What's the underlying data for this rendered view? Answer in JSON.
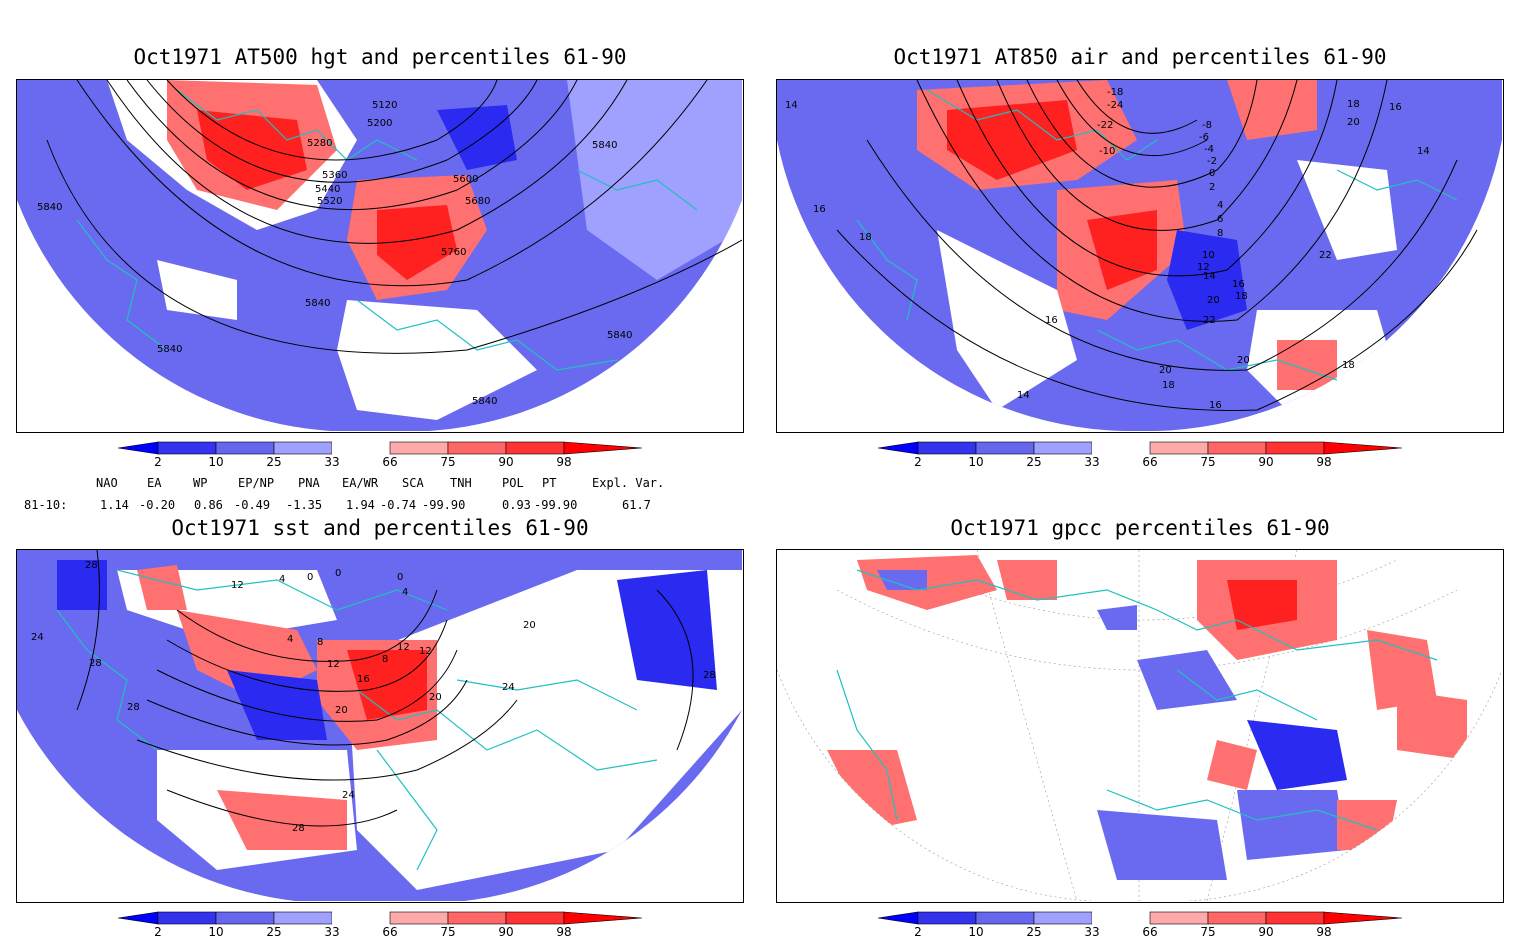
{
  "panels": [
    {
      "title": "Oct1971 AT500 hgt and percentiles 61-90"
    },
    {
      "title": "Oct1971 AT850 air and percentiles 61-90"
    },
    {
      "title": "Oct1971 sst and percentiles 61-90"
    },
    {
      "title": "Oct1971 gpcc percentiles 61-90"
    }
  ],
  "colorbar": {
    "labels": [
      "2",
      "10",
      "25",
      "33",
      "66",
      "75",
      "90",
      "98"
    ],
    "colors": [
      "#0000ff",
      "#3333ee",
      "#6666ee",
      "#a0a0ff",
      "#ffffff",
      "#ffaaaa",
      "#ff6666",
      "#ff3333",
      "#ff0000"
    ]
  },
  "map_colors": {
    "coast": "#20c0c0",
    "contour": "#000000",
    "cold": "#6a6af0",
    "cold_strong": "#2a2af0",
    "warm": "#ff7070",
    "warm_strong": "#ff2020"
  },
  "contour_labels": {
    "hgt": [
      "5120",
      "5200",
      "5280",
      "5360",
      "5440",
      "5520",
      "5600",
      "5680",
      "5760",
      "5840",
      "5840",
      "5840",
      "5840",
      "5840",
      "5840"
    ],
    "air": [
      "-18",
      "-24",
      "-22",
      "-10",
      "-8",
      "-6",
      "-4",
      "-2",
      "0",
      "2",
      "4",
      "6",
      "8",
      "10",
      "12",
      "14",
      "16",
      "18",
      "20",
      "22",
      "20",
      "20",
      "18",
      "16",
      "16",
      "14",
      "14",
      "16",
      "18",
      "18",
      "20",
      "22",
      "16",
      "18",
      "14"
    ],
    "sst": [
      "28",
      "24",
      "28",
      "28",
      "12",
      "4",
      "0",
      "0",
      "4",
      "0",
      "4",
      "8",
      "12",
      "16",
      "20",
      "20",
      "24",
      "24",
      "28",
      "28",
      "8",
      "12",
      "12",
      "20"
    ]
  },
  "indices": {
    "header": [
      "NAO",
      "EA",
      "WP",
      "EP/NP",
      "PNA",
      "EA/WR",
      "SCA",
      "TNH",
      "POL",
      "PT",
      "Expl. Var."
    ],
    "row_label": "81-10:",
    "values": [
      "1.14",
      "-0.20",
      "0.86",
      "-0.49",
      "-1.35",
      "1.94",
      "-0.74",
      "-99.90",
      "0.93",
      "-99.90",
      "61.7"
    ]
  }
}
